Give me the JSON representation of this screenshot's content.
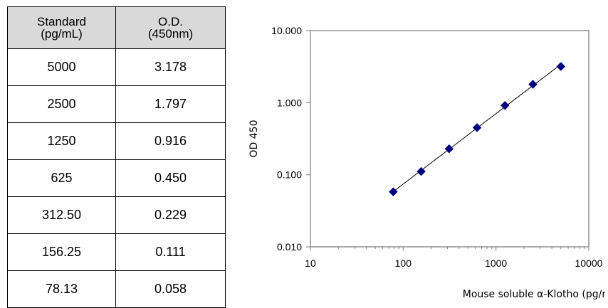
{
  "table": {
    "headers": [
      [
        "Standard",
        "(pg/mL)"
      ],
      [
        "O.D.",
        "(450nm)"
      ]
    ],
    "rows": [
      [
        "5000",
        "3.178"
      ],
      [
        "2500",
        "1.797"
      ],
      [
        "1250",
        "0.916"
      ],
      [
        "625",
        "0.450"
      ],
      [
        "312.50",
        "0.229"
      ],
      [
        "156.25",
        "0.111"
      ],
      [
        "78.13",
        "0.058"
      ]
    ]
  },
  "chart_data": {
    "type": "scatter",
    "title": "",
    "xlabel": "Mouse soluble α-Klotho (pg/mL)",
    "ylabel": "OD 450",
    "xscale": "log",
    "yscale": "log",
    "xlim": [
      10,
      10000
    ],
    "ylim": [
      0.01,
      10
    ],
    "x_ticks": [
      "10",
      "100",
      "1000",
      "10000"
    ],
    "y_ticks": [
      "0.010",
      "0.100",
      "1.000",
      "10.000"
    ],
    "grid": false,
    "trendline": "linear-on-log",
    "marker": "diamond",
    "marker_color": "#00007f",
    "x": [
      5000,
      2500,
      1250,
      625,
      312.5,
      156.25,
      78.13
    ],
    "y": [
      3.178,
      1.797,
      0.916,
      0.45,
      0.229,
      0.111,
      0.058
    ]
  }
}
